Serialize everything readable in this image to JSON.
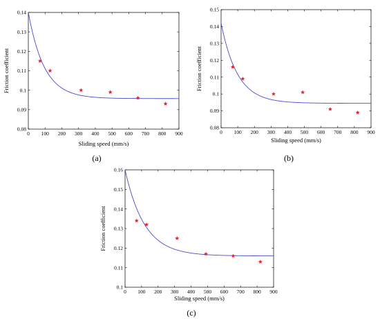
{
  "chart_data": [
    {
      "type": "scatter",
      "panel_label": "(a)",
      "xlabel": "Sliding speed (mm/s)",
      "ylabel": "Friction coefficient",
      "xlim": [
        0,
        900
      ],
      "ylim": [
        0.08,
        0.14
      ],
      "xticks": [
        "0",
        "100",
        "200",
        "300",
        "400",
        "500",
        "600",
        "700",
        "800",
        "900"
      ],
      "yticks": [
        "0.08",
        "0.09",
        "0.1",
        "0.11",
        "0.12",
        "0.13",
        "0.14"
      ],
      "grid": false,
      "series": [
        {
          "type": "scatter",
          "marker": "*",
          "color": "#e8202a",
          "x": [
            70,
            130,
            315,
            490,
            655,
            820
          ],
          "y": [
            0.115,
            0.11,
            0.1,
            0.099,
            0.096,
            0.093
          ]
        },
        {
          "type": "line",
          "color": "#4a4ad0",
          "fit": {
            "a": 0.0957,
            "b": 0.0443,
            "k": 0.0105
          }
        }
      ]
    },
    {
      "type": "scatter",
      "panel_label": "(b)",
      "xlabel": "Sliding speed (mm/s)",
      "ylabel": "Friction coefficient",
      "xlim": [
        0,
        900
      ],
      "ylim": [
        0.08,
        0.15
      ],
      "xticks": [
        "0",
        "100",
        "200",
        "300",
        "400",
        "500",
        "600",
        "700",
        "800",
        "900"
      ],
      "yticks": [
        "0.08",
        "0.09",
        "0.1",
        "0.11",
        "0.12",
        "0.13",
        "0.14",
        "0.15"
      ],
      "grid": false,
      "series": [
        {
          "type": "scatter",
          "marker": "*",
          "color": "#e8202a",
          "x": [
            70,
            130,
            315,
            490,
            655,
            820
          ],
          "y": [
            0.116,
            0.109,
            0.1,
            0.101,
            0.091,
            0.089
          ]
        },
        {
          "type": "line",
          "color": "#4a4ad0",
          "fit": {
            "a": 0.0945,
            "b": 0.0475,
            "k": 0.0102
          }
        }
      ]
    },
    {
      "type": "scatter",
      "panel_label": "(c)",
      "xlabel": "Sliding speed (mm/s)",
      "ylabel": "Friction coefficient",
      "xlim": [
        0,
        900
      ],
      "ylim": [
        0.1,
        0.16
      ],
      "xticks": [
        "0",
        "100",
        "200",
        "300",
        "400",
        "500",
        "600",
        "700",
        "800",
        "900"
      ],
      "yticks": [
        "0.1",
        "0.11",
        "0.12",
        "0.13",
        "0.14",
        "0.15",
        "0.16"
      ],
      "grid": false,
      "series": [
        {
          "type": "scatter",
          "marker": "*",
          "color": "#e8202a",
          "x": [
            70,
            130,
            315,
            490,
            655,
            820
          ],
          "y": [
            0.134,
            0.132,
            0.125,
            0.117,
            0.116,
            0.113
          ]
        },
        {
          "type": "line",
          "color": "#4a4ad0",
          "fit": {
            "a": 0.116,
            "b": 0.044,
            "k": 0.0085
          }
        }
      ]
    }
  ]
}
